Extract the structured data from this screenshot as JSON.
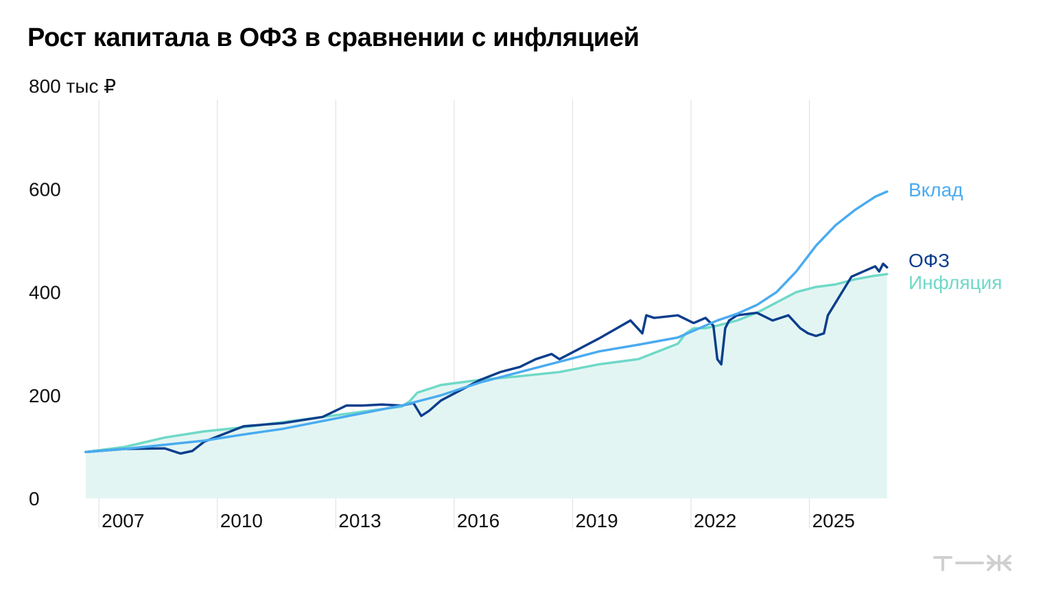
{
  "title": "Рост капитала в ОФЗ в сравнении с инфляцией",
  "unit_label": "800 тыс ₽",
  "logo_text": "т—ж",
  "colors": {
    "deposit": "#4AABF0",
    "ofz": "#0B3E8C",
    "inflation": "#6FD9C7",
    "inflation_fill": "#E3F5F3",
    "grid": "#DDDDDD"
  },
  "chart_data": {
    "type": "line",
    "title": "Рост капитала в ОФЗ в сравнении с инфляцией",
    "ylabel": "тыс ₽",
    "ylim": [
      0,
      800
    ],
    "xlim": [
      2006,
      2026.6
    ],
    "yticks": [
      "0",
      "200",
      "400",
      "600",
      "800 тыс ₽"
    ],
    "ytick_values": [
      0,
      200,
      400,
      600,
      800
    ],
    "xticks": [
      "2007",
      "2010",
      "2013",
      "2016",
      "2019",
      "2022",
      "2025"
    ],
    "xtick_values": [
      2006.333,
      2009.333,
      2012.333,
      2015.333,
      2018.333,
      2021.333,
      2024.333
    ],
    "grid": "vertical",
    "legend_placement": "line ends, right",
    "series": [
      {
        "name": "Вклад",
        "fill": false,
        "x": [
          2006.0,
          2007.0,
          2008.0,
          2009.0,
          2010.0,
          2011.0,
          2012.0,
          2013.0,
          2014.0,
          2015.0,
          2016.0,
          2017.0,
          2018.0,
          2019.0,
          2020.0,
          2021.0,
          2022.0,
          2022.5,
          2023.0,
          2023.5,
          2024.0,
          2024.5,
          2025.0,
          2025.5,
          2026.0,
          2026.3
        ],
        "y": [
          90,
          96,
          104,
          112,
          124,
          135,
          150,
          165,
          180,
          200,
          225,
          245,
          265,
          285,
          298,
          312,
          345,
          358,
          375,
          400,
          440,
          490,
          530,
          560,
          585,
          595
        ]
      },
      {
        "name": "ОФЗ",
        "fill": false,
        "x": [
          2006.0,
          2007.0,
          2008.0,
          2008.4,
          2008.7,
          2009.0,
          2009.5,
          2010.0,
          2011.0,
          2012.0,
          2012.6,
          2013.0,
          2013.5,
          2014.0,
          2014.3,
          2014.5,
          2014.7,
          2015.0,
          2015.5,
          2016.0,
          2016.5,
          2017.0,
          2017.4,
          2017.8,
          2018.0,
          2018.5,
          2019.0,
          2019.8,
          2020.1,
          2020.2,
          2020.4,
          2021.0,
          2021.4,
          2021.7,
          2021.9,
          2022.0,
          2022.1,
          2022.2,
          2022.3,
          2022.5,
          2023.0,
          2023.4,
          2023.8,
          2024.1,
          2024.3,
          2024.5,
          2024.7,
          2024.8,
          2025.0,
          2025.2,
          2025.4,
          2025.7,
          2026.0,
          2026.1,
          2026.2,
          2026.3
        ],
        "y": [
          90,
          96,
          97,
          87,
          92,
          110,
          125,
          140,
          146,
          158,
          180,
          180,
          182,
          180,
          185,
          160,
          170,
          190,
          210,
          230,
          245,
          255,
          270,
          280,
          270,
          290,
          310,
          345,
          320,
          355,
          350,
          355,
          340,
          350,
          335,
          270,
          260,
          330,
          345,
          355,
          360,
          345,
          355,
          330,
          320,
          315,
          320,
          355,
          380,
          405,
          430,
          440,
          450,
          440,
          455,
          448
        ]
      },
      {
        "name": "Инфляция",
        "fill": true,
        "x": [
          2006.0,
          2007.0,
          2008.0,
          2009.0,
          2010.0,
          2011.0,
          2012.0,
          2013.0,
          2014.0,
          2014.2,
          2014.4,
          2015.0,
          2016.0,
          2017.0,
          2018.0,
          2019.0,
          2020.0,
          2020.5,
          2021.0,
          2021.2,
          2021.4,
          2021.7,
          2022.0,
          2022.5,
          2023.0,
          2023.5,
          2024.0,
          2024.5,
          2025.0,
          2025.5,
          2026.0,
          2026.3
        ],
        "y": [
          90,
          100,
          118,
          130,
          138,
          148,
          158,
          168,
          178,
          188,
          205,
          220,
          230,
          237,
          245,
          260,
          270,
          285,
          300,
          320,
          330,
          330,
          335,
          345,
          360,
          380,
          400,
          410,
          415,
          425,
          432,
          435
        ]
      }
    ]
  }
}
